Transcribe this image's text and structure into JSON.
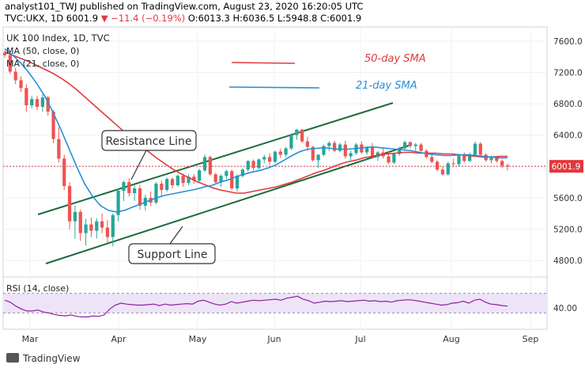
{
  "header": {
    "published_line": "analyst101_TWJ published on TradingView.com, August 23, 2020 16:20:05 UTC",
    "symbol": "TVC:UKX, 1D",
    "last": "6001.9",
    "change": "▼ −11.4 (−0.19%)",
    "ohlc": "O:6013.3 H:6036.5 L:5948.8 C:6001.9"
  },
  "chart_data": {
    "type": "candlestick",
    "title": "UK 100 Index, 1D, TVC",
    "indicators": [
      "MA (50, close, 0)",
      "MA (21, close, 0)"
    ],
    "price_axis": {
      "ticks": [
        4800,
        5200,
        5600,
        6000,
        6400,
        6800,
        7200,
        7600
      ],
      "labels": [
        "4800.0",
        "5200.0",
        "5600.0",
        "6000.0",
        "6400.0",
        "6800.0",
        "7200.0",
        "7600.0"
      ],
      "range": [
        4640,
        7720
      ]
    },
    "last_price": {
      "value": 6001.9,
      "label": "6001.9"
    },
    "time_axis": [
      "Mar",
      "Apr",
      "May",
      "Jun",
      "Jul",
      "Aug",
      "Sep"
    ],
    "candles_approx": [
      [
        7450,
        7480,
        7390,
        7420
      ],
      [
        7420,
        7430,
        7180,
        7210
      ],
      [
        7210,
        7260,
        7050,
        7100
      ],
      [
        7100,
        7150,
        6950,
        7000
      ],
      [
        7000,
        7050,
        6700,
        6780
      ],
      [
        6780,
        6900,
        6740,
        6860
      ],
      [
        6860,
        6900,
        6720,
        6760
      ],
      [
        6760,
        6920,
        6700,
        6880
      ],
      [
        6880,
        6900,
        6650,
        6700
      ],
      [
        6700,
        6720,
        6300,
        6350
      ],
      [
        6350,
        6500,
        6050,
        6100
      ],
      [
        6100,
        6150,
        5700,
        5750
      ],
      [
        5750,
        5800,
        5200,
        5300
      ],
      [
        5300,
        5500,
        5080,
        5420
      ],
      [
        5420,
        5450,
        5050,
        5150
      ],
      [
        5150,
        5330,
        4990,
        5260
      ],
      [
        5260,
        5350,
        5100,
        5180
      ],
      [
        5180,
        5340,
        5080,
        5300
      ],
      [
        5300,
        5400,
        5150,
        5220
      ],
      [
        5220,
        5320,
        5000,
        5100
      ],
      [
        5100,
        5400,
        4980,
        5380
      ],
      [
        5380,
        5720,
        5300,
        5690
      ],
      [
        5690,
        5820,
        5560,
        5800
      ],
      [
        5800,
        5850,
        5620,
        5660
      ],
      [
        5660,
        5760,
        5560,
        5720
      ],
      [
        5720,
        5760,
        5450,
        5500
      ],
      [
        5500,
        5640,
        5440,
        5600
      ],
      [
        5600,
        5680,
        5500,
        5540
      ],
      [
        5540,
        5800,
        5520,
        5780
      ],
      [
        5780,
        5820,
        5620,
        5700
      ],
      [
        5700,
        5860,
        5680,
        5840
      ],
      [
        5840,
        5860,
        5720,
        5760
      ],
      [
        5760,
        5900,
        5740,
        5880
      ],
      [
        5880,
        5910,
        5740,
        5790
      ],
      [
        5790,
        5900,
        5760,
        5870
      ],
      [
        5870,
        5900,
        5780,
        5820
      ],
      [
        5820,
        5970,
        5800,
        5950
      ],
      [
        5950,
        6150,
        5930,
        6120
      ],
      [
        6120,
        6140,
        5880,
        5900
      ],
      [
        5900,
        5920,
        5780,
        5800
      ],
      [
        5800,
        5900,
        5740,
        5880
      ],
      [
        5880,
        5960,
        5840,
        5940
      ],
      [
        5940,
        5960,
        5700,
        5720
      ],
      [
        5720,
        5900,
        5680,
        5880
      ],
      [
        5880,
        5980,
        5860,
        5960
      ],
      [
        5960,
        6080,
        5930,
        6070
      ],
      [
        6070,
        6090,
        5950,
        5980
      ],
      [
        5980,
        6100,
        5960,
        6090
      ],
      [
        6090,
        6150,
        6040,
        6120
      ],
      [
        6120,
        6170,
        6020,
        6060
      ],
      [
        6060,
        6200,
        6040,
        6190
      ],
      [
        6190,
        6230,
        6110,
        6150
      ],
      [
        6150,
        6250,
        6120,
        6230
      ],
      [
        6230,
        6420,
        6210,
        6400
      ],
      [
        6400,
        6480,
        6340,
        6470
      ],
      [
        6470,
        6480,
        6300,
        6320
      ],
      [
        6320,
        6380,
        6200,
        6250
      ],
      [
        6250,
        6260,
        6060,
        6080
      ],
      [
        6080,
        6160,
        5980,
        6150
      ],
      [
        6150,
        6280,
        6130,
        6260
      ],
      [
        6260,
        6320,
        6200,
        6300
      ],
      [
        6300,
        6330,
        6180,
        6200
      ],
      [
        6200,
        6300,
        6180,
        6280
      ],
      [
        6280,
        6330,
        6100,
        6130
      ],
      [
        6130,
        6200,
        6080,
        6170
      ],
      [
        6170,
        6300,
        6150,
        6280
      ],
      [
        6280,
        6320,
        6160,
        6180
      ],
      [
        6180,
        6260,
        6150,
        6240
      ],
      [
        6240,
        6300,
        6100,
        6120
      ],
      [
        6120,
        6200,
        6070,
        6180
      ],
      [
        6180,
        6230,
        6100,
        6130
      ],
      [
        6130,
        6200,
        6030,
        6050
      ],
      [
        6050,
        6180,
        6030,
        6160
      ],
      [
        6160,
        6250,
        6140,
        6230
      ],
      [
        6230,
        6330,
        6200,
        6310
      ],
      [
        6310,
        6320,
        6230,
        6260
      ],
      [
        6260,
        6300,
        6200,
        6280
      ],
      [
        6280,
        6300,
        6180,
        6200
      ],
      [
        6200,
        6220,
        6100,
        6120
      ],
      [
        6120,
        6160,
        6040,
        6060
      ],
      [
        6060,
        6080,
        5940,
        5960
      ],
      [
        5960,
        6000,
        5880,
        5900
      ],
      [
        5900,
        6060,
        5880,
        6040
      ],
      [
        6040,
        6100,
        5990,
        6030
      ],
      [
        6030,
        6160,
        6000,
        6140
      ],
      [
        6140,
        6180,
        6050,
        6070
      ],
      [
        6070,
        6180,
        6060,
        6150
      ],
      [
        6150,
        6320,
        6130,
        6290
      ],
      [
        6290,
        6310,
        6130,
        6150
      ],
      [
        6150,
        6170,
        6060,
        6080
      ],
      [
        6080,
        6140,
        6040,
        6110
      ],
      [
        6110,
        6130,
        6050,
        6070
      ],
      [
        6070,
        6090,
        5980,
        6010
      ],
      [
        6013.3,
        6036.5,
        5948.8,
        6001.9
      ]
    ],
    "ma50_approx": [
      7460,
      7420,
      7380,
      7340,
      7290,
      7240,
      7190,
      7130,
      7060,
      6980,
      6890,
      6800,
      6710,
      6620,
      6530,
      6440,
      6350,
      6270,
      6190,
      6110,
      6040,
      5970,
      5910,
      5860,
      5810,
      5770,
      5730,
      5700,
      5680,
      5660,
      5660,
      5680,
      5700,
      5720,
      5740,
      5770,
      5800,
      5840,
      5880,
      5920,
      5950,
      5990,
      6030,
      6060,
      6080,
      6110,
      6130,
      6150,
      6160,
      6170,
      6180,
      6180,
      6170,
      6170,
      6170,
      6160,
      6160,
      6150,
      6140,
      6130,
      6120,
      6120,
      6130,
      6130
    ],
    "ma21_approx": [
      7500,
      7420,
      7320,
      7200,
      7060,
      6900,
      6700,
      6480,
      6240,
      6000,
      5780,
      5620,
      5500,
      5440,
      5420,
      5440,
      5480,
      5520,
      5560,
      5600,
      5630,
      5650,
      5670,
      5690,
      5710,
      5740,
      5760,
      5800,
      5830,
      5870,
      5900,
      5930,
      5950,
      5980,
      6020,
      6080,
      6140,
      6190,
      6220,
      6230,
      6240,
      6230,
      6220,
      6220,
      6230,
      6240,
      6250,
      6240,
      6230,
      6220,
      6210,
      6200,
      6180,
      6160,
      6150,
      6140,
      6140,
      6150,
      6150,
      6140,
      6130,
      6120,
      6110,
      6110
    ],
    "annotations": {
      "resistance_label": "Resistance Line",
      "support_label": "Support Line",
      "sma50_label": "50-day SMA",
      "sma21_label": "21-day SMA"
    },
    "rsi": {
      "label": "RSI (14, close)",
      "ticks": [
        40
      ],
      "tick_label": "40.00",
      "band": [
        30,
        70
      ],
      "values_approx": [
        56,
        52,
        44,
        38,
        34,
        34,
        36,
        32,
        30,
        27,
        25,
        24,
        26,
        23,
        22,
        22,
        24,
        23,
        26,
        38,
        46,
        50,
        48,
        47,
        46,
        46,
        47,
        48,
        45,
        48,
        46,
        47,
        48,
        49,
        48,
        54,
        56,
        52,
        48,
        46,
        48,
        53,
        50,
        52,
        54,
        56,
        55,
        56,
        57,
        58,
        56,
        60,
        62,
        64,
        58,
        55,
        50,
        52,
        54,
        53,
        54,
        55,
        53,
        54,
        55,
        56,
        54,
        55,
        53,
        54,
        52,
        55,
        56,
        57,
        56,
        54,
        52,
        50,
        48,
        46,
        47,
        50,
        51,
        54,
        50,
        56,
        58,
        52,
        48,
        47,
        45,
        44
      ]
    }
  },
  "footer": {
    "brand": "TradingView"
  }
}
